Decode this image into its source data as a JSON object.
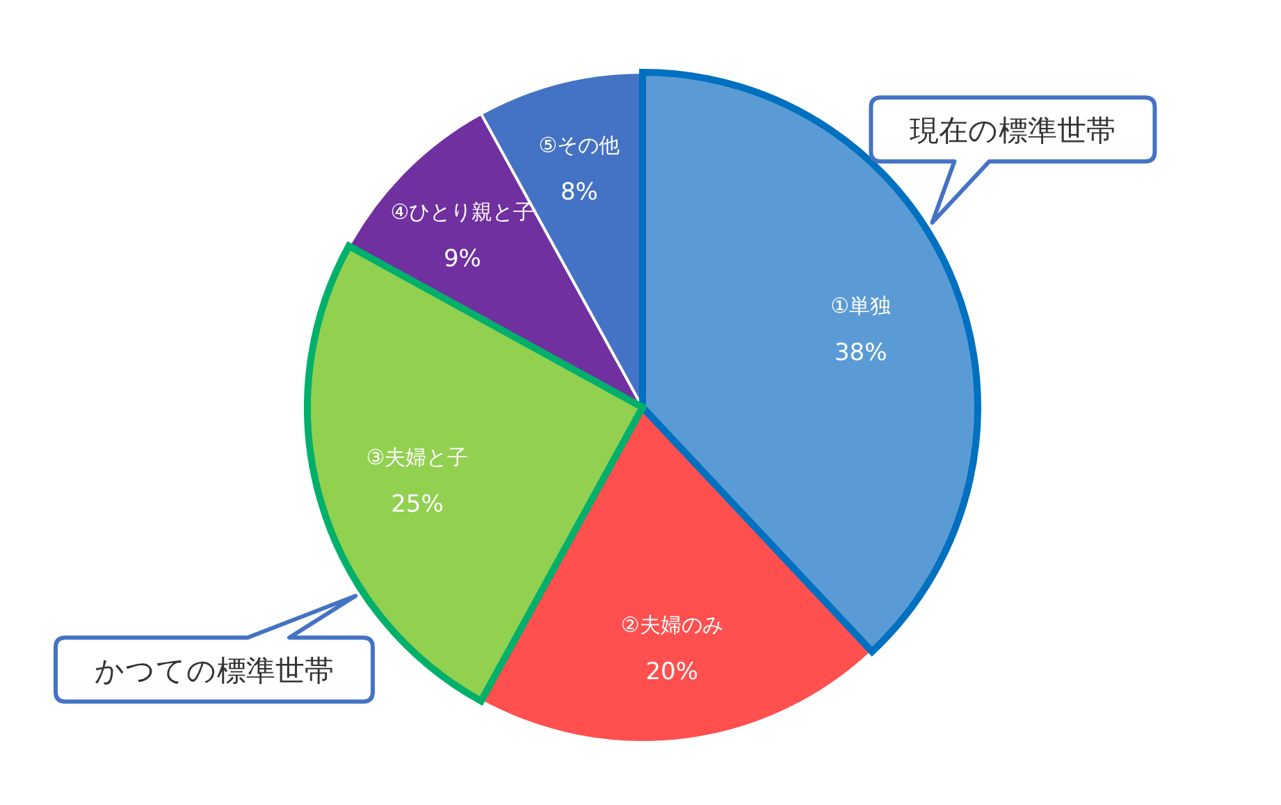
{
  "chart_data": {
    "type": "pie",
    "categories": [
      "①単独",
      "②夫婦のみ",
      "③夫婦と子",
      "④ひとり親と子",
      "⑤その他"
    ],
    "values": [
      38,
      20,
      25,
      9,
      8
    ],
    "value_labels": [
      "38%",
      "20%",
      "25%",
      "9%",
      "8%"
    ],
    "colors": [
      "#5b9bd5",
      "#ff4f4f",
      "#92d050",
      "#7030a0",
      "#4472c4"
    ],
    "annotations": [
      {
        "text": "現在の標準世帯",
        "x": "①単独"
      },
      {
        "text": "かつての標準世帯",
        "x": "③夫婦と子"
      }
    ]
  }
}
